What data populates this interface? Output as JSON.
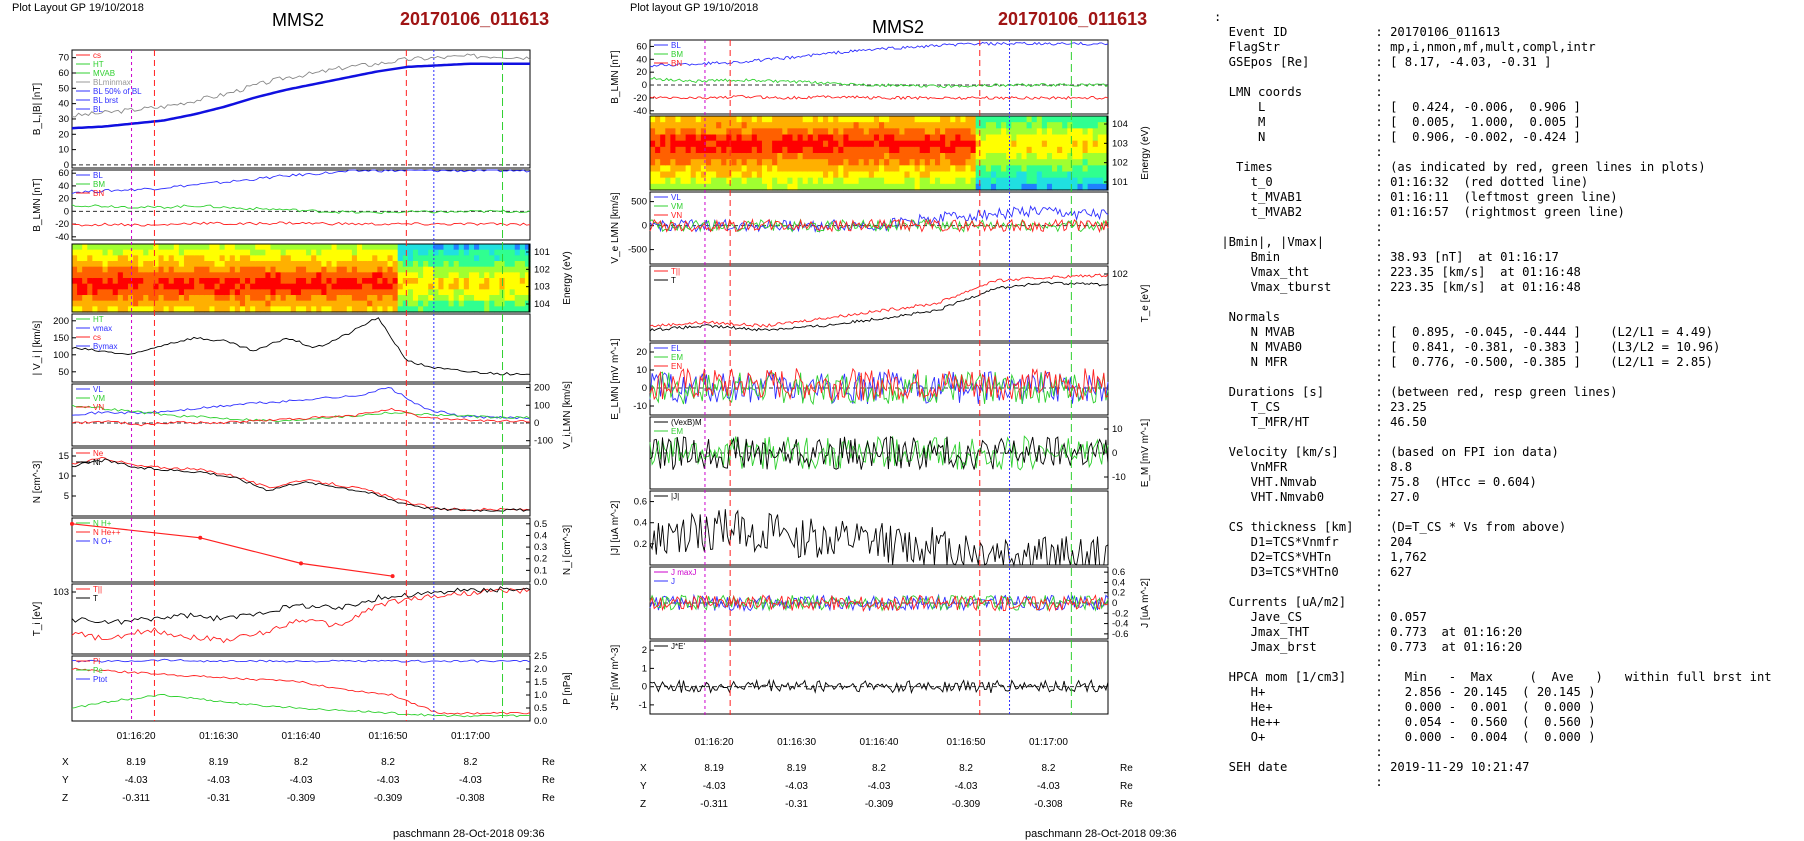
{
  "header": {
    "left_layout": "Plot Layout GP 19/10/2018",
    "right_layout": "Plot layout GP 19/10/2018",
    "spacecraft": "MMS2",
    "event": "20170106_011613",
    "footer": "paschmann 28-Oct-2018 09:36"
  },
  "colors": {
    "blue": "#3030ff",
    "green": "#30d030",
    "red": "#ff2020",
    "magenta": "#cc00cc",
    "gray": "#888888",
    "darkred": "#a01414"
  },
  "chart_data": [
    {
      "type": "line",
      "panel": "B_L |B|",
      "ylabel": "B_L,|B| [nT]",
      "legend_placement": "top-left",
      "legend": [
        "cs",
        "HT",
        "MVAB",
        "BLminmax",
        "BL 50% of BL",
        "BL brst",
        "BL"
      ],
      "ylim": [
        -2,
        75
      ],
      "yticks": [
        "0",
        "10",
        "20",
        "30",
        "40",
        "50",
        "60",
        "70"
      ],
      "series": [
        {
          "name": "|B|",
          "color": "#888888",
          "values": [
            32,
            34,
            36,
            38,
            42,
            46,
            52,
            57,
            60,
            64,
            66,
            69,
            70,
            71,
            71,
            70
          ]
        },
        {
          "name": "BL brst",
          "color": "#1010e0",
          "values": [
            24,
            25,
            27,
            29,
            33,
            38,
            44,
            49,
            53,
            57,
            61,
            64,
            65,
            66,
            66,
            66
          ]
        }
      ]
    },
    {
      "type": "line",
      "panel": "B_LMN",
      "ylabel": "B_LMN [nT]",
      "legend": [
        "BL",
        "BM",
        "BN"
      ],
      "ylim": [
        -45,
        65
      ],
      "yticks": [
        "60",
        "40",
        "20",
        "0",
        "-20",
        "-40"
      ],
      "series": [
        {
          "name": "BL",
          "color": "#3030ff",
          "values": [
            30,
            33,
            36,
            42,
            48,
            55,
            60,
            64,
            64,
            64,
            64,
            64
          ]
        },
        {
          "name": "BM",
          "color": "#30d030",
          "values": [
            10,
            8,
            6,
            9,
            5,
            3,
            0,
            -2,
            -1,
            -1,
            0,
            0
          ]
        },
        {
          "name": "BN",
          "color": "#ff2020",
          "values": [
            -22,
            -20,
            -22,
            -18,
            -20,
            -18,
            -19,
            -20,
            -20,
            -20,
            -20,
            -20
          ]
        }
      ]
    },
    {
      "type": "heatmap",
      "panel": "ion energy spectrogram",
      "ylabel": "Energy (eV)",
      "yticks": [
        "10^1",
        "10^2",
        "10^3",
        "10^4"
      ]
    },
    {
      "type": "line",
      "panel": "|V_i|",
      "ylabel": "| V_i | [km/s]",
      "legend": [
        "HT",
        "vmax",
        "cs",
        "Bymax"
      ],
      "ylim": [
        20,
        220
      ],
      "yticks": [
        "200",
        "150",
        "100",
        "50"
      ],
      "series": [
        {
          "name": "|Vi|",
          "color": "#000000",
          "values": [
            120,
            110,
            100,
            130,
            150,
            140,
            110,
            150,
            120,
            160,
            210,
            80,
            60,
            50,
            45,
            40
          ]
        }
      ]
    },
    {
      "type": "line",
      "panel": "V_i LMN",
      "ylabel": "V_i,LMN [km/s]",
      "legend": [
        "VL",
        "VM",
        "VN"
      ],
      "ylim": [
        -130,
        220
      ],
      "yticks": [
        "200",
        "100",
        "0",
        "-100"
      ],
      "series": [
        {
          "name": "VL",
          "color": "#3030ff",
          "values": [
            50,
            60,
            55,
            70,
            90,
            110,
            120,
            140,
            150,
            200,
            80,
            40,
            30,
            30
          ]
        },
        {
          "name": "VM",
          "color": "#30d030",
          "values": [
            100,
            80,
            60,
            40,
            30,
            20,
            10,
            30,
            40,
            60,
            50,
            40,
            30,
            30
          ]
        },
        {
          "name": "VN",
          "color": "#ff2020",
          "values": [
            0,
            10,
            -10,
            5,
            0,
            10,
            20,
            30,
            40,
            80,
            30,
            20,
            10,
            10
          ]
        }
      ]
    },
    {
      "type": "line",
      "panel": "N",
      "ylabel": "N [cm^-3]",
      "legend": [
        "Ne",
        "Ni"
      ],
      "ylim": [
        0,
        17
      ],
      "yticks": [
        "15",
        "10",
        "5"
      ],
      "series": [
        {
          "name": "Ne",
          "color": "#ff2020",
          "values": [
            13,
            14.5,
            12.5,
            12,
            11.5,
            10,
            7,
            9,
            8,
            6.5,
            4,
            2,
            1.6,
            1.6,
            1.6
          ]
        },
        {
          "name": "Ni",
          "color": "#000000",
          "values": [
            12.5,
            14,
            12,
            11.5,
            11,
            9.5,
            6.5,
            8.5,
            7.5,
            6,
            3.5,
            1.8,
            1.5,
            1.5,
            1.5
          ]
        }
      ]
    },
    {
      "type": "line",
      "panel": "HPCA N",
      "ylabel": "N_i [cm^-3]",
      "legend": [
        "N H+",
        "N He++",
        "N O+"
      ],
      "ylim": [
        0,
        0.55
      ],
      "yticks": [
        "0.5",
        "0.4",
        "0.3",
        "0.2",
        "0.1",
        "0.0"
      ],
      "series": [
        {
          "name": "N He++",
          "color": "#ff2020",
          "x": [
            0.0,
            0.28,
            0.5,
            0.7
          ],
          "values": [
            0.5,
            0.38,
            0.16,
            0.05
          ]
        }
      ]
    },
    {
      "type": "line",
      "panel": "T_i",
      "ylabel": "T_i [eV]",
      "legend": [
        "T||",
        "T"
      ],
      "yticks": [
        "10^3"
      ],
      "series": [
        {
          "name": "T||",
          "color": "#ff2020",
          "values": [
            0.3,
            0.2,
            0.35,
            0.25,
            0.2,
            0.3,
            0.5,
            0.4,
            0.7,
            0.8,
            0.85,
            0.9,
            0.9
          ]
        },
        {
          "name": "T",
          "color": "#000000",
          "values": [
            0.5,
            0.45,
            0.5,
            0.55,
            0.5,
            0.6,
            0.7,
            0.65,
            0.8,
            0.85,
            0.9,
            0.92,
            0.93
          ]
        }
      ]
    },
    {
      "type": "line",
      "panel": "P",
      "ylabel": "P [nPa]",
      "legend": [
        "Pi",
        "Pe",
        "Ptot"
      ],
      "ylim": [
        0,
        2.5
      ],
      "yticks": [
        "2.5",
        "2.0",
        "1.5",
        "1.0",
        "0.5",
        "0.0"
      ],
      "series": [
        {
          "name": "Ptot",
          "color": "#3030ff",
          "values": [
            2.3,
            2.3,
            2.35,
            2.3,
            2.3,
            2.3,
            2.3,
            2.3,
            2.3,
            2.3,
            2.3
          ]
        },
        {
          "name": "P",
          "color": "#ff2020",
          "values": [
            2.0,
            1.9,
            1.8,
            1.7,
            1.6,
            1.5,
            1.2,
            1.0,
            0.3,
            0.3,
            0.3
          ]
        },
        {
          "name": "Pe",
          "color": "#30d030",
          "values": [
            0.5,
            0.8,
            1.0,
            0.8,
            0.6,
            0.5,
            0.4,
            0.3,
            0.2,
            0.2,
            0.2
          ]
        }
      ]
    },
    {
      "type": "line",
      "panel": "right B_LMN",
      "ylabel": "B_LMN [nT]",
      "legend": [
        "BL",
        "BM",
        "BN"
      ],
      "ylim": [
        -45,
        70
      ],
      "yticks": [
        "60",
        "40",
        "20",
        "0",
        "-20",
        "-40"
      ],
      "series": [
        {
          "name": "BL",
          "color": "#3030ff",
          "values": [
            30,
            33,
            36,
            42,
            50,
            56,
            60,
            64,
            64,
            64,
            64
          ]
        },
        {
          "name": "BM",
          "color": "#30d030",
          "values": [
            10,
            6,
            8,
            5,
            3,
            0,
            -2,
            -1,
            0,
            0,
            0
          ]
        },
        {
          "name": "BN",
          "color": "#ff2020",
          "values": [
            -20,
            -20,
            -18,
            -20,
            -18,
            -20,
            -20,
            -20,
            -20,
            -20,
            -20
          ]
        }
      ]
    },
    {
      "type": "heatmap",
      "panel": "electron energy spectrogram",
      "ylabel": "Energy (eV)",
      "yticks": [
        "10^4",
        "10^3",
        "10^2",
        "10^1"
      ]
    },
    {
      "type": "line",
      "panel": "Ve LMN",
      "ylabel": "V_e LMN [km/s]",
      "legend": [
        "VL",
        "VM",
        "VN"
      ],
      "ylim": [
        -800,
        700
      ],
      "yticks": [
        "500",
        "0",
        "-500"
      ]
    },
    {
      "type": "line",
      "panel": "Te",
      "ylabel": "T_e [eV]",
      "legend": [
        "T||",
        "T"
      ],
      "yticks": [
        "10^2"
      ]
    },
    {
      "type": "line",
      "panel": "E LMN",
      "ylabel": "E_LMN [mV m^-1]",
      "legend": [
        "EL",
        "EM",
        "EN"
      ],
      "ylim": [
        -15,
        25
      ],
      "yticks": [
        "20",
        "10",
        "0",
        "-10"
      ]
    },
    {
      "type": "line",
      "panel": "EM",
      "ylabel": "E_M [mV m^-1]",
      "legend": [
        "(VexB)M",
        "EM"
      ],
      "ylim": [
        -15,
        15
      ],
      "yticks": [
        "10",
        "0",
        "-10"
      ]
    },
    {
      "type": "line",
      "panel": "|J|",
      "ylabel": "|J| [uA m^-2]",
      "legend": [
        "|J|"
      ],
      "ylim": [
        0,
        0.7
      ],
      "yticks": [
        "0.6",
        "0.4",
        "0.2"
      ]
    },
    {
      "type": "line",
      "panel": "J",
      "ylabel": "J [uA m^-2]",
      "legend": [
        "J maxJ",
        "J"
      ],
      "ylim": [
        -0.7,
        0.7
      ],
      "yticks": [
        "0.6",
        "0.4",
        "0.2",
        "0",
        "-0.2",
        "-0.4",
        "-0.6"
      ]
    },
    {
      "type": "line",
      "panel": "J*E",
      "ylabel": "J*E' [nW m^-3]",
      "legend": [
        "J*E'"
      ],
      "ylim": [
        -1.5,
        2.5
      ],
      "yticks": [
        "2",
        "1",
        "0",
        "-1"
      ]
    }
  ],
  "axes": {
    "time_ticks": [
      "01:16:20",
      "01:16:30",
      "01:16:40",
      "01:16:50",
      "01:17:00"
    ],
    "pos_rows": [
      {
        "label": "X",
        "values": [
          "8.19",
          "8.19",
          "8.2",
          "8.2",
          "8.2"
        ],
        "unit": "Re"
      },
      {
        "label": "Y",
        "values": [
          "-4.03",
          "-4.03",
          "-4.03",
          "-4.03",
          "-4.03"
        ],
        "unit": "Re"
      },
      {
        "label": "Z",
        "values": [
          "-0.311",
          "-0.31",
          "-0.309",
          "-0.309",
          "-0.308"
        ],
        "unit": "Re"
      }
    ]
  },
  "info_lines": [
    ":",
    "  Event ID            : 20170106_011613",
    "  FlagStr             : mp,i,nmon,mf,mult,compl,intr",
    "  GSEpos [Re]         : [ 8.17, -4.03, -0.31 ]",
    "                      :",
    "  LMN coords          :",
    "      L               : [  0.424, -0.006,  0.906 ]",
    "      M               : [  0.005,  1.000,  0.005 ]",
    "      N               : [  0.906, -0.002, -0.424 ]",
    "                      :",
    "   Times              : (as indicated by red, green lines in plots)",
    "     t_0              : 01:16:32  (red dotted line)",
    "     t_MVAB1          : 01:16:11  (leftmost green line)",
    "     t_MVAB2          : 01:16:57  (rightmost green line)",
    "                      :",
    " |Bmin|, |Vmax|       :",
    "     Bmin             : 38.93 [nT]  at 01:16:17",
    "     Vmax_tht         : 223.35 [km/s]  at 01:16:48",
    "     Vmax_tburst      : 223.35 [km/s]  at 01:16:48",
    "                      :",
    "  Normals             :",
    "     N MVAB           : [  0.895, -0.045, -0.444 ]    (L2/L1 = 4.49)",
    "     N MVAB0          : [  0.841, -0.381, -0.383 ]    (L3/L2 = 10.96)",
    "     N MFR            : [  0.776, -0.500, -0.385 ]    (L2/L1 = 2.85)",
    "                      :",
    "  Durations [s]       : (between red, resp green lines)",
    "     T_CS             : 23.25",
    "     T_MFR/HT         : 46.50",
    "                      :",
    "  Velocity [km/s]     : (based on FPI ion data)",
    "     VnMFR            : 8.8",
    "     VHT.Nmvab        : 75.8  (HTcc = 0.604)",
    "     VHT.Nmvab0       : 27.0",
    "                      :",
    "  CS thickness [km]   : (D=T_CS * Vs from above)",
    "     D1=TCS*Vnmfr     : 204",
    "     D2=TCS*VHTn      : 1,762",
    "     D3=TCS*VHTn0     : 627",
    "                      :",
    "  Currents [uA/m2]    :",
    "     Jave_CS          : 0.057",
    "     Jmax_THT         : 0.773  at 01:16:20",
    "     Jmax_brst        : 0.773  at 01:16:20",
    "                      :",
    "  HPCA mom [1/cm3]    :   Min   -  Max     (  Ave   )   within full brst int",
    "     H+               :   2.856 - 20.145  ( 20.145 )",
    "     He+              :   0.000 -  0.001  (  0.000 )",
    "     He++             :   0.054 -  0.560  (  0.560 )",
    "     O+               :   0.000 -  0.004  (  0.000 )",
    "                      :",
    "  SEH date            : 2019-11-29 10:21:47",
    "                      :"
  ]
}
